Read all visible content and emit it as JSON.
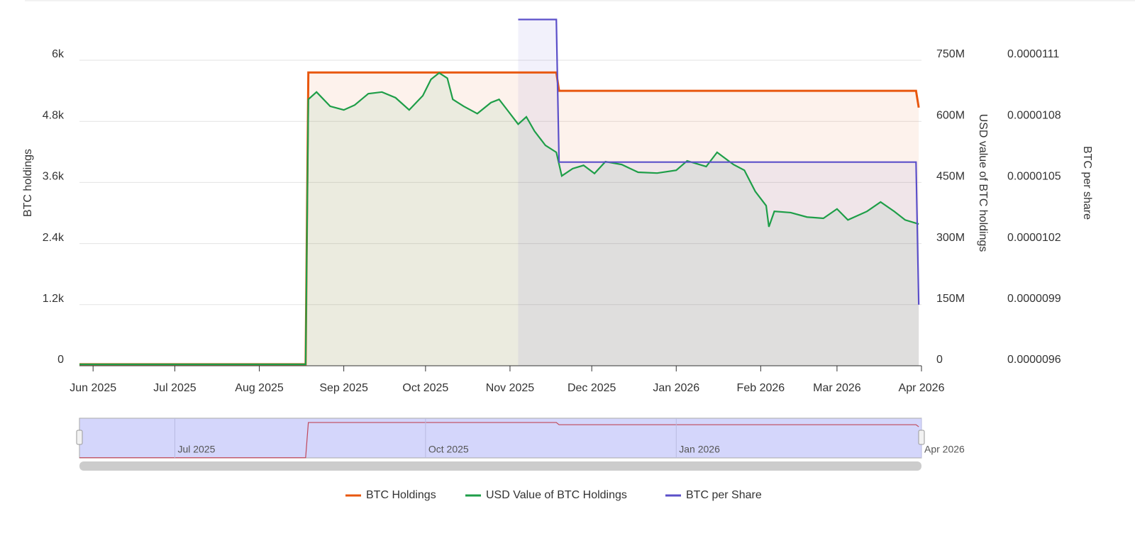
{
  "chart_data": {
    "type": "line",
    "xlim": [
      "2025-05-27",
      "2026-04-01"
    ],
    "xticks": [
      {
        "value": "2025-06-01",
        "label": "Jun 2025"
      },
      {
        "value": "2025-07-01",
        "label": "Jul 2025"
      },
      {
        "value": "2025-08-01",
        "label": "Aug 2025"
      },
      {
        "value": "2025-09-01",
        "label": "Sep 2025"
      },
      {
        "value": "2025-10-01",
        "label": "Oct 2025"
      },
      {
        "value": "2025-11-01",
        "label": "Nov 2025"
      },
      {
        "value": "2025-12-01",
        "label": "Dec 2025"
      },
      {
        "value": "2026-01-01",
        "label": "Jan 2026"
      },
      {
        "value": "2026-02-01",
        "label": "Feb 2026"
      },
      {
        "value": "2026-03-01",
        "label": "Mar 2026"
      },
      {
        "value": "2026-04-01",
        "label": "Apr 2026"
      }
    ],
    "ylabel": "BTC holdings",
    "ylim": [
      0,
      6000
    ],
    "yticks": [
      0,
      {
        "value": 1200,
        "label": "1.2k"
      },
      {
        "value": 2400,
        "label": "2.4k"
      },
      {
        "value": 3600,
        "label": "3.6k"
      },
      {
        "value": 4800,
        "label": "4.8k"
      },
      {
        "value": 6000,
        "label": "6k"
      }
    ],
    "y2label": "USD value of BTC holdings",
    "y2lim": [
      0,
      750000000
    ],
    "y2ticks": [
      0,
      {
        "value": 150000000,
        "label": "150M"
      },
      {
        "value": 300000000,
        "label": "300M"
      },
      {
        "value": 450000000,
        "label": "450M"
      },
      {
        "value": 600000000,
        "label": "600M"
      },
      {
        "value": 750000000,
        "label": "750M"
      }
    ],
    "y3label": "BTC per share",
    "y3lim": [
      9.6e-06,
      1.11e-05
    ],
    "y3ticks": [
      9.6e-06,
      9.9e-06,
      1.02e-05,
      1.05e-05,
      1.08e-05,
      1.11e-05
    ],
    "grid": true,
    "legend": "bottom",
    "navigator_ticks": [
      {
        "value": "2025-07-01",
        "label": "Jul 2025"
      },
      {
        "value": "2025-10-01",
        "label": "Oct 2025"
      },
      {
        "value": "2026-01-01",
        "label": "Jan 2026"
      },
      {
        "value": "2026-04-01",
        "label": "Apr 2026"
      }
    ],
    "series": [
      {
        "name": "BTC Holdings",
        "color": "#e8570e",
        "axis": "y",
        "x": [
          "2025-05-27",
          "2025-08-18",
          "2025-08-19",
          "2025-11-18",
          "2025-11-19",
          "2026-03-30",
          "2026-03-31"
        ],
        "values": [
          30,
          30,
          5760,
          5760,
          5400,
          5400,
          5070
        ]
      },
      {
        "name": "USD Value of BTC Holdings",
        "color": "#1e9e48",
        "axis": "y2",
        "x": [
          "2025-05-27",
          "2025-08-18",
          "2025-08-19",
          "2025-08-22",
          "2025-08-27",
          "2025-09-01",
          "2025-09-05",
          "2025-09-10",
          "2025-09-15",
          "2025-09-20",
          "2025-09-25",
          "2025-09-30",
          "2025-10-03",
          "2025-10-06",
          "2025-10-09",
          "2025-10-11",
          "2025-10-15",
          "2025-10-20",
          "2025-10-25",
          "2025-10-28",
          "2025-10-31",
          "2025-11-04",
          "2025-11-07",
          "2025-11-10",
          "2025-11-14",
          "2025-11-18",
          "2025-11-20",
          "2025-11-24",
          "2025-11-28",
          "2025-12-02",
          "2025-12-06",
          "2025-12-12",
          "2025-12-18",
          "2025-12-25",
          "2026-01-01",
          "2026-01-05",
          "2026-01-12",
          "2026-01-16",
          "2026-01-22",
          "2026-01-26",
          "2026-01-30",
          "2026-02-03",
          "2026-02-04",
          "2026-02-06",
          "2026-02-12",
          "2026-02-18",
          "2026-02-24",
          "2026-03-01",
          "2026-03-05",
          "2026-03-12",
          "2026-03-17",
          "2026-03-22",
          "2026-03-26",
          "2026-03-31"
        ],
        "values": [
          3500000,
          3500000,
          654000000,
          672000000,
          637000000,
          628000000,
          640000000,
          668000000,
          672000000,
          658000000,
          628000000,
          663000000,
          703000000,
          719000000,
          706000000,
          654000000,
          637000000,
          619000000,
          646000000,
          654000000,
          628000000,
          593000000,
          611000000,
          576000000,
          541000000,
          524000000,
          466000000,
          484000000,
          492000000,
          472000000,
          501000000,
          494000000,
          475000000,
          473000000,
          480000000,
          503000000,
          489000000,
          524000000,
          494000000,
          480000000,
          428000000,
          393000000,
          341000000,
          379000000,
          376000000,
          365000000,
          362000000,
          385000000,
          358000000,
          379000000,
          402000000,
          379000000,
          358000000,
          348000000
        ]
      },
      {
        "name": "BTC per Share",
        "color": "#5b4fc9",
        "axis": "y3",
        "x": [
          "2025-11-04",
          "2025-11-18",
          "2025-11-19",
          "2026-03-30",
          "2026-03-31"
        ],
        "values": [
          1.13e-05,
          1.13e-05,
          1.06e-05,
          1.06e-05,
          9.9e-06
        ]
      }
    ]
  }
}
